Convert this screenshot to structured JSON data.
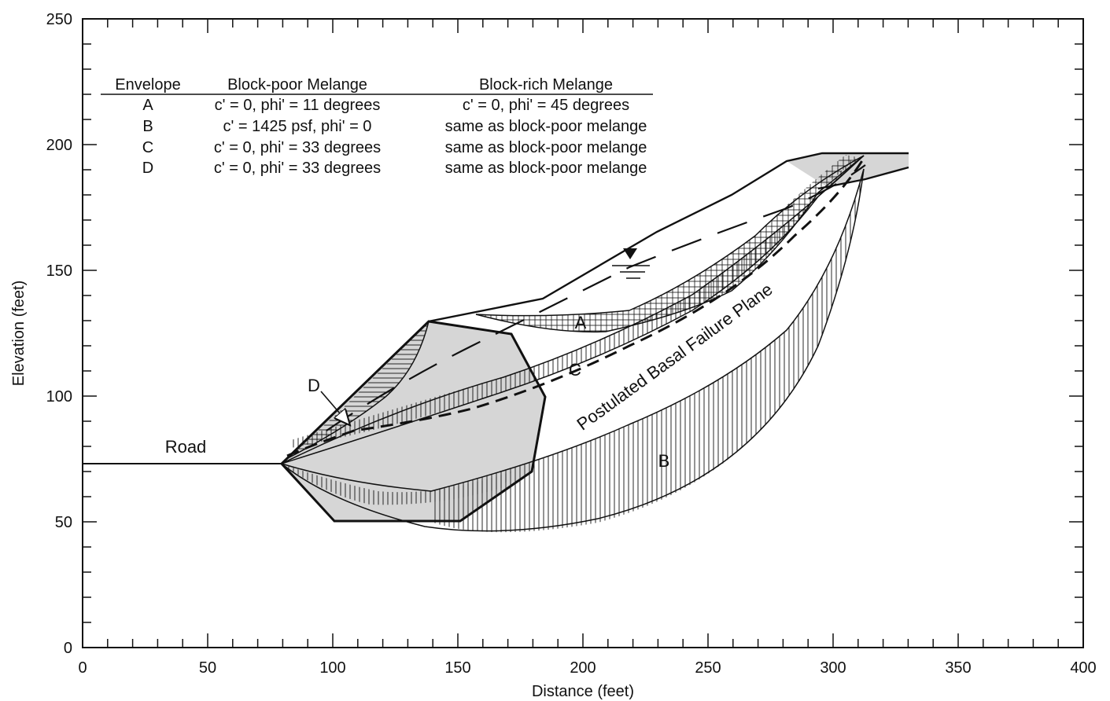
{
  "axes": {
    "xlabel": "Distance (feet)",
    "ylabel": "Elevation (feet)",
    "x_ticks": [
      "0",
      "50",
      "100",
      "150",
      "200",
      "250",
      "300",
      "350",
      "400"
    ],
    "y_ticks": [
      "0",
      "50",
      "100",
      "150",
      "200",
      "250"
    ],
    "xlim": [
      0,
      400
    ],
    "ylim": [
      0,
      250
    ]
  },
  "table": {
    "headers": [
      "Envelope",
      "Block-poor Melange",
      "Block-rich Melange"
    ],
    "rows": [
      [
        "A",
        "c' = 0, phi' = 11 degrees",
        "c' = 0, phi' = 45 degrees"
      ],
      [
        "B",
        "c' = 1425 psf, phi' = 0",
        "same as block-poor melange"
      ],
      [
        "C",
        "c' = 0, phi' = 33 degrees",
        "same as block-poor melange"
      ],
      [
        "D",
        "c' = 0, phi' = 33 degrees",
        "same as block-poor melange"
      ]
    ]
  },
  "labels": {
    "road": "Road",
    "envelope_a": "A",
    "envelope_b": "B",
    "envelope_c": "C",
    "envelope_d": "D",
    "basal_plane": "Postulated Basal Failure Plane"
  },
  "colors": {
    "ink": "#111111",
    "block_rich_fill": "#d6d6d6",
    "background": "#ffffff"
  },
  "chart_data": {
    "type": "cross-section",
    "xlabel": "Distance (feet)",
    "ylabel": "Elevation (feet)",
    "xlim": [
      0,
      400
    ],
    "ylim": [
      0,
      250
    ],
    "ground_surface": {
      "x": [
        0,
        79,
        139,
        185,
        230,
        260,
        283,
        295,
        330
      ],
      "y": [
        73,
        73,
        129,
        138,
        165,
        180,
        195,
        196,
        196
      ]
    },
    "basal_failure_plane": {
      "x": [
        79,
        100,
        150,
        200,
        250,
        300,
        314
      ],
      "y": [
        73,
        85,
        95,
        114,
        140,
        180,
        196
      ]
    },
    "groundwater_table": {
      "x": [
        95,
        150,
        200,
        250,
        300,
        314
      ],
      "y": [
        88,
        120,
        152,
        172,
        186,
        196
      ]
    },
    "block_rich_zones": [
      {
        "x": [
          100,
          80,
          139,
          170,
          185,
          179,
          150
        ],
        "y": [
          50,
          73,
          129,
          125,
          100,
          70,
          50
        ]
      },
      {
        "x": [
          283,
          295,
          330,
          330,
          314,
          300
        ],
        "y": [
          195,
          196,
          196,
          191,
          187,
          182
        ]
      }
    ],
    "failure_envelopes": [
      {
        "name": "A",
        "x": [
          155,
          200,
          250,
          300,
          314
        ],
        "y": [
          133,
          126,
          140,
          178,
          196
        ]
      },
      {
        "name": "B",
        "x": [
          79,
          150,
          200,
          250,
          290,
          308,
          314
        ],
        "y": [
          73,
          48,
          52,
          82,
          125,
          165,
          196
        ]
      },
      {
        "name": "C",
        "x": [
          79,
          150,
          200,
          250,
          300,
          314
        ],
        "y": [
          73,
          79,
          105,
          135,
          175,
          196
        ]
      },
      {
        "name": "D",
        "x": [
          79,
          100,
          125,
          139
        ],
        "y": [
          73,
          83,
          105,
          129
        ]
      }
    ]
  }
}
